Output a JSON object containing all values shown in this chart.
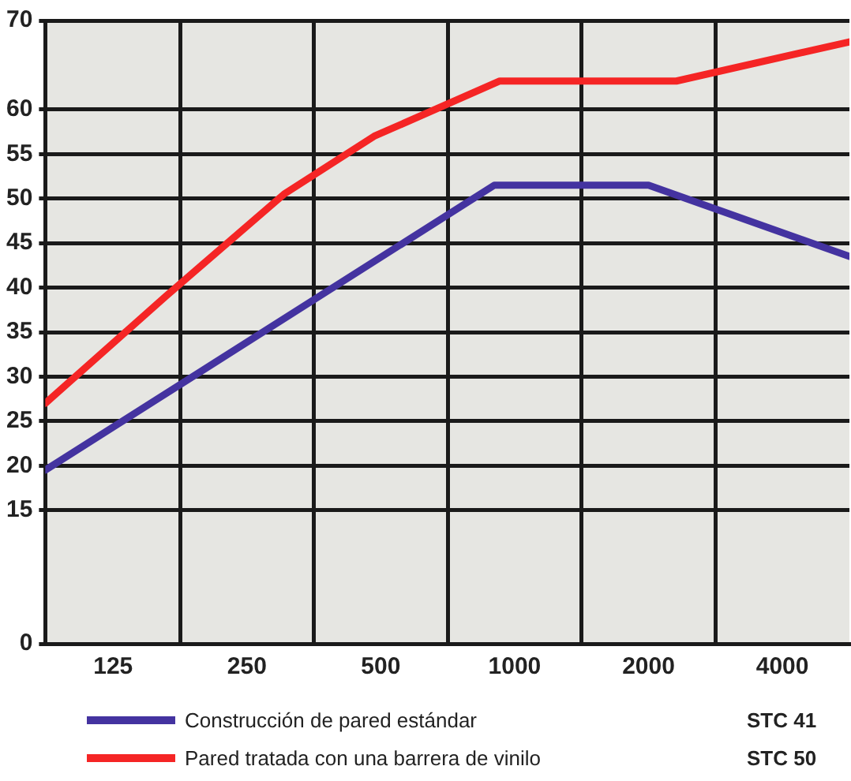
{
  "chart_data": {
    "type": "line",
    "log": "x",
    "grid": true,
    "legend": "bottom",
    "marker": "none",
    "line_style": "solid",
    "xlim": [
      88,
      5660
    ],
    "xticks": [
      125,
      {
        "value": 177,
        "label": null
      },
      250,
      {
        "value": 354,
        "label": null
      },
      500,
      {
        "value": 707,
        "label": null
      },
      1000,
      {
        "value": 1414,
        "label": null
      },
      2000,
      {
        "value": 2828,
        "label": null
      },
      4000
    ],
    "ylim": [
      0,
      70
    ],
    "yticks": [
      0,
      15,
      20,
      25,
      30,
      35,
      40,
      45,
      50,
      55,
      60,
      70
    ],
    "series": [
      {
        "name": "Construcción de pared estándar",
        "color": "#4433a0",
        "x": [
          88,
          900,
          2000,
          5660
        ],
        "values": [
          19.5,
          51.5,
          51.5,
          43.5
        ]
      },
      {
        "name": "Pared tratada con una barrera de vinilo",
        "color": "#f52525",
        "x": [
          88,
          164,
          303,
          483,
          926,
          2310,
          5660
        ],
        "values": [
          27,
          39,
          50.5,
          57,
          63.2,
          63.2,
          67.6
        ]
      }
    ],
    "annotations": [
      "STC 41",
      "STC 50"
    ]
  }
}
